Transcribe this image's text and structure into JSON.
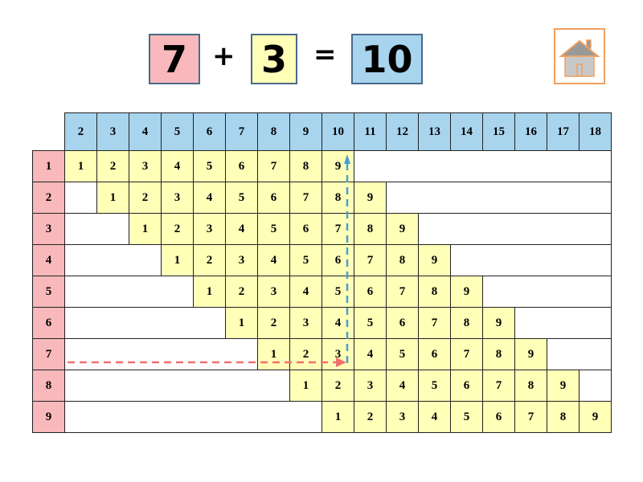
{
  "equation": {
    "addend1": "7",
    "plus": "+",
    "addend2": "3",
    "equals": "=",
    "sum": "10"
  },
  "home_button": {
    "icon": "home-icon"
  },
  "table": {
    "column_headers": [
      "2",
      "3",
      "4",
      "5",
      "6",
      "7",
      "8",
      "9",
      "10",
      "11",
      "12",
      "13",
      "14",
      "15",
      "16",
      "17",
      "18"
    ],
    "row_labels": [
      "1",
      "2",
      "3",
      "4",
      "5",
      "6",
      "7",
      "8",
      "9"
    ],
    "cell_values": [
      "1",
      "2",
      "3",
      "4",
      "5",
      "6",
      "7",
      "8",
      "9"
    ]
  },
  "highlight": {
    "row": "7",
    "column": "10"
  },
  "colors": {
    "addend1": "#f9b8bb",
    "addend2": "#ffffb8",
    "sum": "#a8d4ee",
    "home_border": "#f0a060",
    "row_arrow": "#f07070",
    "column_arrow": "#4a9fd0"
  }
}
